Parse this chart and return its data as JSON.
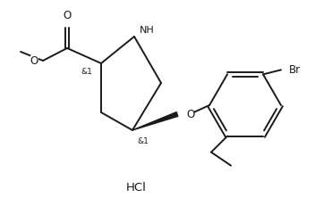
{
  "bg_color": "#ffffff",
  "line_color": "#1a1a1a",
  "text_color": "#1a1a1a",
  "line_width": 1.4,
  "figsize": [
    3.52,
    2.31
  ],
  "dpi": 100,
  "hcl_label": "HCl",
  "nh_label": "NH",
  "o_label": "O",
  "br_label": "Br",
  "stereo_label": "&1"
}
